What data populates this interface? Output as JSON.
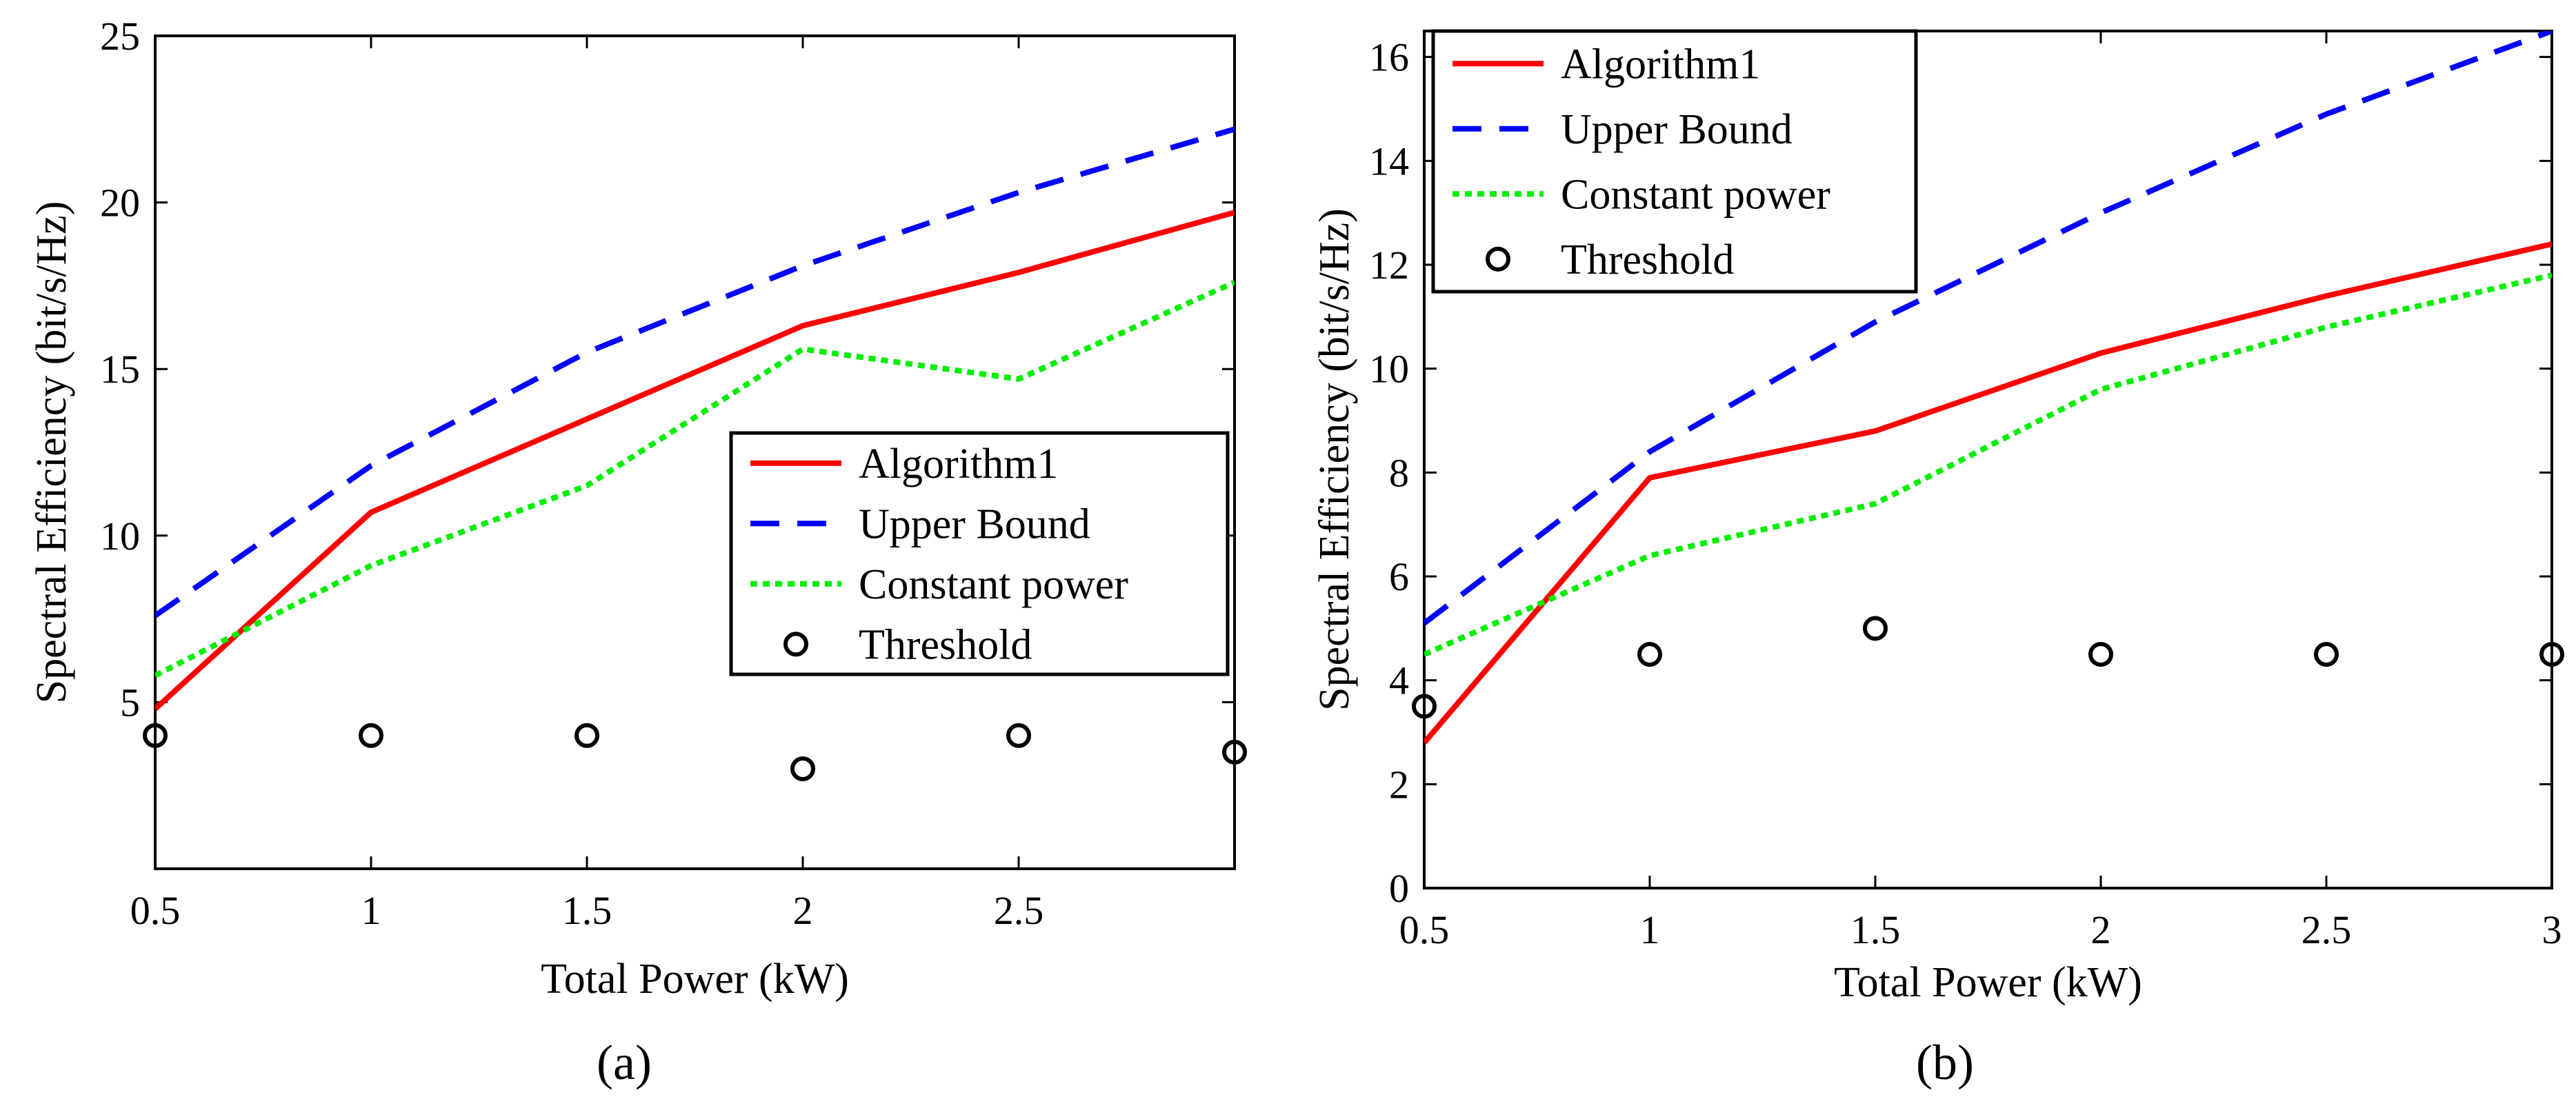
{
  "chart_data": [
    {
      "type": "line",
      "panel_label": "(a)",
      "xlabel": "Total Power (kW)",
      "ylabel": "Spectral Efficiency (bit/s/Hz)",
      "xlim": [
        0.5,
        3
      ],
      "ylim": [
        0,
        25
      ],
      "xticks": [
        0.5,
        1,
        1.5,
        2,
        2.5
      ],
      "xtick_labels": [
        "0.5",
        "1",
        "1.5",
        "2",
        "2.5"
      ],
      "yticks": [
        5,
        10,
        15,
        20,
        25
      ],
      "ytick_labels": [
        "5",
        "10",
        "15",
        "20",
        "25"
      ],
      "legend_position": "center-right",
      "series": [
        {
          "name": "Algorithm1",
          "style": "solid",
          "color": "#ff0000",
          "x": [
            0.5,
            1,
            1.5,
            2,
            2.5,
            3
          ],
          "values": [
            4.8,
            10.7,
            13.5,
            16.3,
            17.9,
            19.7
          ]
        },
        {
          "name": "Upper Bound",
          "style": "dashed",
          "color": "#0000ff",
          "x": [
            0.5,
            1,
            1.5,
            2,
            2.5,
            3
          ],
          "values": [
            7.6,
            12.1,
            15.5,
            18.1,
            20.3,
            22.2
          ]
        },
        {
          "name": "Constant power",
          "style": "dotted",
          "color": "#00ee00",
          "x": [
            0.5,
            1,
            1.5,
            2,
            2.5,
            3
          ],
          "values": [
            5.8,
            9.1,
            11.5,
            15.6,
            14.7,
            17.6
          ]
        },
        {
          "name": "Threshold",
          "style": "marker",
          "color": "#000000",
          "x": [
            0.5,
            1,
            1.5,
            2,
            2.5,
            3
          ],
          "values": [
            4.0,
            4.0,
            4.0,
            3.0,
            4.0,
            3.5
          ]
        }
      ]
    },
    {
      "type": "line",
      "panel_label": "(b)",
      "xlabel": "Total Power (kW)",
      "ylabel": "Spectral Efficiency (bit/s/Hz)",
      "xlim": [
        0.5,
        3
      ],
      "ylim": [
        0,
        16.5
      ],
      "xticks": [
        0.5,
        1,
        1.5,
        2,
        2.5,
        3
      ],
      "xtick_labels": [
        "0.5",
        "1",
        "1.5",
        "2",
        "2.5",
        "3"
      ],
      "yticks": [
        0,
        2,
        4,
        6,
        8,
        10,
        12,
        14,
        16
      ],
      "ytick_labels": [
        "0",
        "2",
        "4",
        "6",
        "8",
        "10",
        "12",
        "14",
        "16"
      ],
      "legend_position": "top-left",
      "series": [
        {
          "name": "Algorithm1",
          "style": "solid",
          "color": "#ff0000",
          "x": [
            0.5,
            1,
            1.5,
            2,
            2.5,
            3
          ],
          "values": [
            2.8,
            7.9,
            8.8,
            10.3,
            11.4,
            12.4
          ]
        },
        {
          "name": "Upper Bound",
          "style": "dashed",
          "color": "#0000ff",
          "x": [
            0.5,
            1,
            1.5,
            2,
            2.5,
            3
          ],
          "values": [
            5.1,
            8.4,
            10.9,
            13.0,
            14.9,
            16.5
          ]
        },
        {
          "name": "Constant power",
          "style": "dotted",
          "color": "#00ee00",
          "x": [
            0.5,
            1,
            1.5,
            2,
            2.5,
            3
          ],
          "values": [
            4.5,
            6.4,
            7.4,
            9.6,
            10.8,
            11.8
          ]
        },
        {
          "name": "Threshold",
          "style": "marker",
          "color": "#000000",
          "x": [
            0.5,
            1,
            1.5,
            2,
            2.5,
            3
          ],
          "values": [
            3.5,
            4.5,
            5.0,
            4.5,
            4.5,
            4.5
          ]
        }
      ]
    }
  ]
}
